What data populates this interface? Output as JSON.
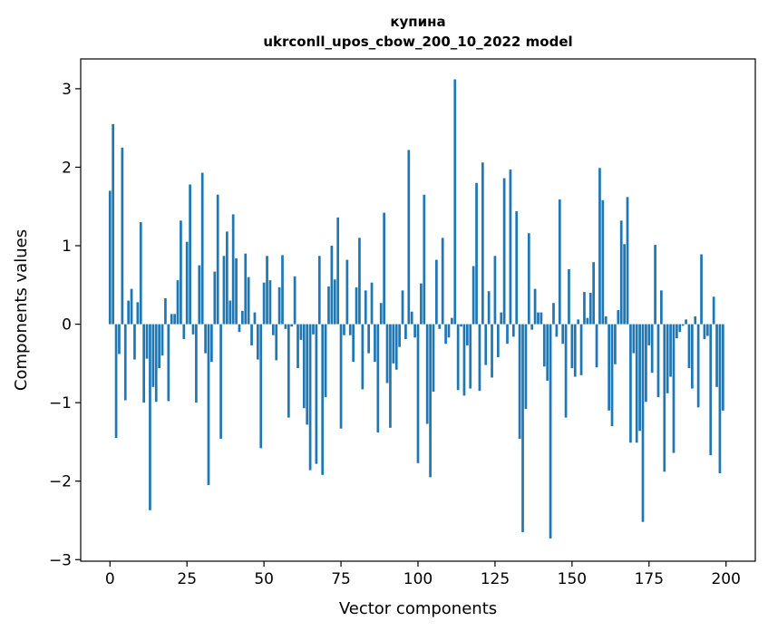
{
  "chart_data": {
    "type": "bar",
    "title": "купина",
    "subtitle": "ukrconll_upos_cbow_200_10_2022 model",
    "xlabel": "Vector components",
    "ylabel": "Components values",
    "xlim": [
      -9.5,
      209.5
    ],
    "ylim": [
      -3.02,
      3.38
    ],
    "xticks": [
      0,
      25,
      50,
      75,
      100,
      125,
      150,
      175,
      200
    ],
    "yticks": [
      -3,
      -2,
      -1,
      0,
      1,
      2,
      3
    ],
    "xtick_labels": [
      "0",
      "25",
      "50",
      "75",
      "100",
      "125",
      "150",
      "175",
      "200"
    ],
    "ytick_labels": [
      "−3",
      "−2",
      "−1",
      "0",
      "1",
      "2",
      "3"
    ],
    "grid": false,
    "bar_color": "#1f77b4",
    "x": [
      0,
      1,
      2,
      3,
      4,
      5,
      6,
      7,
      8,
      9,
      10,
      11,
      12,
      13,
      14,
      15,
      16,
      17,
      18,
      19,
      20,
      21,
      22,
      23,
      24,
      25,
      26,
      27,
      28,
      29,
      30,
      31,
      32,
      33,
      34,
      35,
      36,
      37,
      38,
      39,
      40,
      41,
      42,
      43,
      44,
      45,
      46,
      47,
      48,
      49,
      50,
      51,
      52,
      53,
      54,
      55,
      56,
      57,
      58,
      59,
      60,
      61,
      62,
      63,
      64,
      65,
      66,
      67,
      68,
      69,
      70,
      71,
      72,
      73,
      74,
      75,
      76,
      77,
      78,
      79,
      80,
      81,
      82,
      83,
      84,
      85,
      86,
      87,
      88,
      89,
      90,
      91,
      92,
      93,
      94,
      95,
      96,
      97,
      98,
      99,
      100,
      101,
      102,
      103,
      104,
      105,
      106,
      107,
      108,
      109,
      110,
      111,
      112,
      113,
      114,
      115,
      116,
      117,
      118,
      119,
      120,
      121,
      122,
      123,
      124,
      125,
      126,
      127,
      128,
      129,
      130,
      131,
      132,
      133,
      134,
      135,
      136,
      137,
      138,
      139,
      140,
      141,
      142,
      143,
      144,
      145,
      146,
      147,
      148,
      149,
      150,
      151,
      152,
      153,
      154,
      155,
      156,
      157,
      158,
      159,
      160,
      161,
      162,
      163,
      164,
      165,
      166,
      167,
      168,
      169,
      170,
      171,
      172,
      173,
      174,
      175,
      176,
      177,
      178,
      179,
      180,
      181,
      182,
      183,
      184,
      185,
      186,
      187,
      188,
      189,
      190,
      191,
      192,
      193,
      194,
      195,
      196,
      197,
      198,
      199
    ],
    "values": [
      1.7,
      2.55,
      -1.45,
      -0.38,
      2.25,
      -0.97,
      0.3,
      0.45,
      -0.45,
      0.28,
      1.3,
      -1.0,
      -0.44,
      -2.37,
      -0.8,
      -0.99,
      -0.56,
      -0.4,
      0.33,
      -0.98,
      0.13,
      0.13,
      0.56,
      1.32,
      -0.19,
      1.05,
      1.78,
      -0.13,
      -1.0,
      0.75,
      1.93,
      -0.37,
      -2.05,
      -0.48,
      0.67,
      1.65,
      -1.46,
      0.87,
      1.18,
      0.3,
      1.4,
      0.84,
      -0.1,
      0.17,
      0.9,
      0.6,
      -0.27,
      0.15,
      -0.45,
      -1.58,
      0.53,
      0.87,
      0.56,
      -0.14,
      -0.46,
      0.47,
      0.88,
      -0.06,
      -1.19,
      -0.03,
      0.61,
      -0.56,
      -0.2,
      -1.07,
      -1.28,
      -1.86,
      -0.13,
      -1.78,
      0.87,
      -1.92,
      -0.93,
      0.48,
      1.0,
      0.57,
      1.36,
      -1.33,
      -0.14,
      0.82,
      -0.14,
      -0.48,
      0.47,
      1.1,
      -0.83,
      0.43,
      -0.37,
      0.53,
      -0.48,
      -1.38,
      0.27,
      1.42,
      -0.75,
      -1.32,
      -0.5,
      -0.58,
      -0.29,
      0.43,
      -0.19,
      2.22,
      0.16,
      -0.17,
      -1.77,
      0.52,
      1.65,
      -1.27,
      -1.95,
      -0.86,
      0.82,
      -0.06,
      1.1,
      -0.25,
      -0.17,
      0.08,
      3.12,
      -0.84,
      -0.03,
      -0.91,
      -0.27,
      -0.82,
      0.74,
      1.8,
      -0.85,
      2.06,
      -0.52,
      0.42,
      -0.68,
      0.87,
      -0.42,
      0.15,
      1.86,
      -0.25,
      1.97,
      -0.16,
      1.44,
      -1.46,
      -2.65,
      -1.08,
      1.16,
      -0.07,
      0.45,
      0.15,
      0.15,
      -0.54,
      -0.72,
      -2.73,
      0.27,
      -0.16,
      1.59,
      -0.25,
      -1.19,
      0.7,
      -0.56,
      -0.67,
      0.06,
      -0.65,
      0.41,
      0.08,
      0.4,
      0.79,
      -0.55,
      1.99,
      1.58,
      0.1,
      -1.1,
      -1.3,
      -0.51,
      0.18,
      1.32,
      1.02,
      1.62,
      -1.51,
      -0.37,
      -1.51,
      -1.36,
      -2.52,
      -0.99,
      -0.27,
      -0.62,
      1.01,
      -0.93,
      0.43,
      -1.88,
      -0.88,
      -0.67,
      -1.64,
      -0.18,
      -0.1,
      -0.02,
      0.06,
      -0.56,
      -0.82,
      0.1,
      -1.06,
      0.89,
      -0.19,
      -0.15,
      -1.67,
      0.35,
      -0.8,
      -1.9,
      -1.1
    ]
  }
}
